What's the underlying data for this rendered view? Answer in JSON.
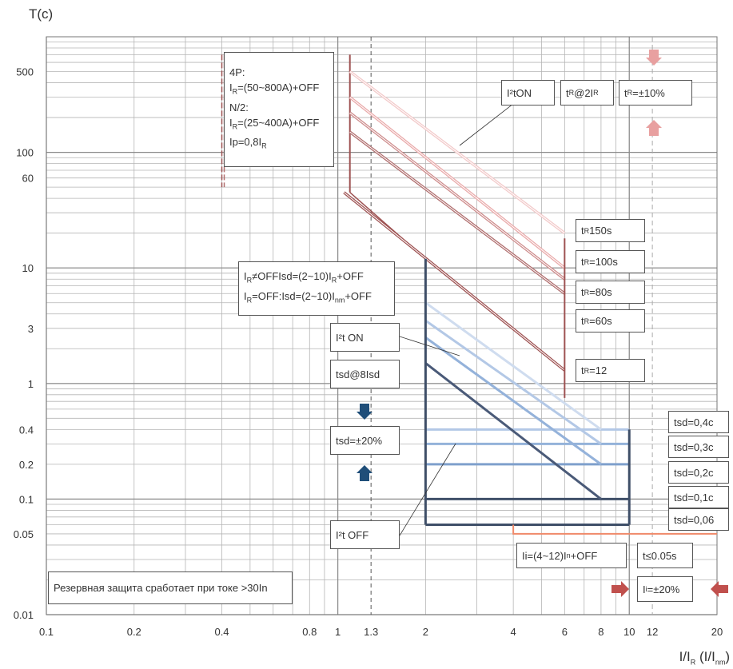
{
  "title": "",
  "axis": {
    "ylabel": "T(c)",
    "xlabel_main": "I/I",
    "xlabel_sub": "R",
    "xlabel_paren": " (I/I",
    "xlabel_paren_sub": "nm",
    "xlabel_close": ")"
  },
  "chart_data": {
    "type": "line",
    "xscale": "log",
    "yscale": "log",
    "xlim": [
      0.1,
      20
    ],
    "ylim": [
      0.01,
      1000
    ],
    "xticks": [
      0.1,
      0.2,
      0.4,
      0.8,
      1,
      1.3,
      2,
      4,
      6,
      8,
      10,
      12,
      20
    ],
    "xtick_labels": [
      "0.1",
      "0.2",
      "0.4",
      "0.8",
      "1",
      "1.3",
      "2",
      "4",
      "6",
      "8",
      "10",
      "12",
      "20"
    ],
    "yticks": [
      0.01,
      0.05,
      0.1,
      0.2,
      0.4,
      1,
      3,
      10,
      60,
      100,
      500
    ],
    "ytick_labels": [
      "0.01",
      "0.05",
      "0.1",
      "0.2",
      "0.4",
      "1",
      "3",
      "10",
      "60",
      "100",
      "500"
    ],
    "grid": true,
    "long_time_curves": [
      {
        "name": "tR150s",
        "x": [
          1.1,
          6
        ],
        "y": [
          500,
          20
        ],
        "color": "#f2c9c9"
      },
      {
        "name": "tR100s",
        "x": [
          1.1,
          6
        ],
        "y": [
          300,
          10
        ],
        "color": "#e9a9a9"
      },
      {
        "name": "tR80s",
        "x": [
          1.1,
          6
        ],
        "y": [
          220,
          8
        ],
        "color": "#cd8a8a"
      },
      {
        "name": "tR60s",
        "x": [
          1.1,
          6
        ],
        "y": [
          150,
          6
        ],
        "color": "#b06e6e"
      },
      {
        "name": "tR12",
        "x": [
          1.05,
          6
        ],
        "y": [
          45,
          1.3
        ],
        "color": "#9e5252"
      }
    ],
    "short_time_curves": [
      {
        "name": "tsd-0.4",
        "x": [
          2,
          8
        ],
        "y": [
          5,
          0.4
        ],
        "color": "#cfdcef"
      },
      {
        "name": "tsd-0.3",
        "x": [
          2,
          8
        ],
        "y": [
          3.5,
          0.3
        ],
        "color": "#b3c8e6"
      },
      {
        "name": "tsd-0.2",
        "x": [
          2,
          8
        ],
        "y": [
          2.5,
          0.2
        ],
        "color": "#94b2da"
      },
      {
        "name": "tsd-0.1",
        "x": [
          2,
          8
        ],
        "y": [
          1.5,
          0.1
        ],
        "color": "#4a5a78"
      }
    ],
    "flat_levels": [
      {
        "y": 0.4,
        "x": [
          2,
          10
        ],
        "color": "#b3c8e6"
      },
      {
        "y": 0.3,
        "x": [
          2,
          10
        ],
        "color": "#94b2da"
      },
      {
        "y": 0.2,
        "x": [
          2,
          10
        ],
        "color": "#7fa0cc"
      },
      {
        "y": 0.1,
        "x": [
          2,
          10
        ],
        "color": "#3f4f68"
      },
      {
        "y": 0.06,
        "x": [
          2,
          10
        ],
        "color": "#3f4f68"
      }
    ],
    "instantaneous": {
      "y": 0.05,
      "x": [
        4,
        20
      ],
      "color": "#f08a6a"
    },
    "reference_lines": {
      "ir_min_x": 0.4,
      "ir_max_x": 1.1,
      "x_1_3": 1.3,
      "x_12": 12,
      "x_10": 10
    }
  },
  "annotations": {
    "box_4p_lines": [
      "4P:",
      "I_R=(50~800A)+OFF",
      "N/2:",
      "I_R=(25~400A)+OFF",
      "Ip=0,8I_R"
    ],
    "i2t_on_top": "I²tON",
    "tr_at_2ir": "t_R@2I_R",
    "tr_tol": "t_R=±10%",
    "tr150": "t_R150s",
    "tr100": "t_R=100s",
    "tr80": "t_R=80s",
    "tr60": "t_R=60s",
    "tr12": "t_R=12",
    "isd_line1": "I_R≠OFFIsd=(2~10)I_R+OFF",
    "isd_line2": "I_R=OFF:Isd=(2~10)I_nm+OFF",
    "i2t_on_mid": "I²t ON",
    "tsd_8isd": "tsd@8Isd",
    "tsd_tol": "tsd=±20%",
    "i2t_off": "I²t OFF",
    "tsd04": "tsd=0,4c",
    "tsd03": "tsd=0,3c",
    "tsd02": "tsd=0,2c",
    "tsd01": "tsd=0,1c",
    "tsd006": "tsd=0,06",
    "ii_range": "Ii=(4~12)I_n+OFF",
    "t_le": "t≤0.05s",
    "ii_tol": "I_i=±20%",
    "reserve": "Резервная защита сработает при токе >30In"
  },
  "colors": {
    "grid_major": "#8a8a8a",
    "grid_minor": "#b5b5b5",
    "arrow_red": "#c0504d",
    "arrow_pink": "#e8a0a0",
    "arrow_blue": "#1f4e79"
  }
}
